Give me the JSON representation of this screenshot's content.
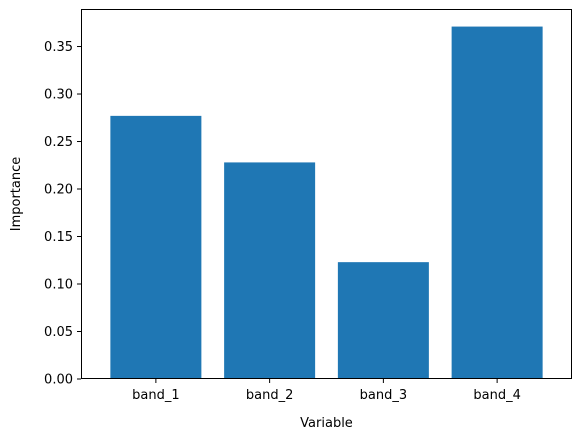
{
  "chart_data": {
    "type": "bar",
    "title": "",
    "xlabel": "Variable",
    "ylabel": "Importance",
    "categories": [
      "band_1",
      "band_2",
      "band_3",
      "band_4"
    ],
    "values": [
      0.277,
      0.228,
      0.123,
      0.371
    ],
    "ylim": [
      0,
      0.3895
    ],
    "yticks": [
      "0.00",
      "0.05",
      "0.10",
      "0.15",
      "0.20",
      "0.25",
      "0.30",
      "0.35"
    ],
    "grid": false,
    "legend": "none",
    "bar_color": "#1f77b4"
  }
}
